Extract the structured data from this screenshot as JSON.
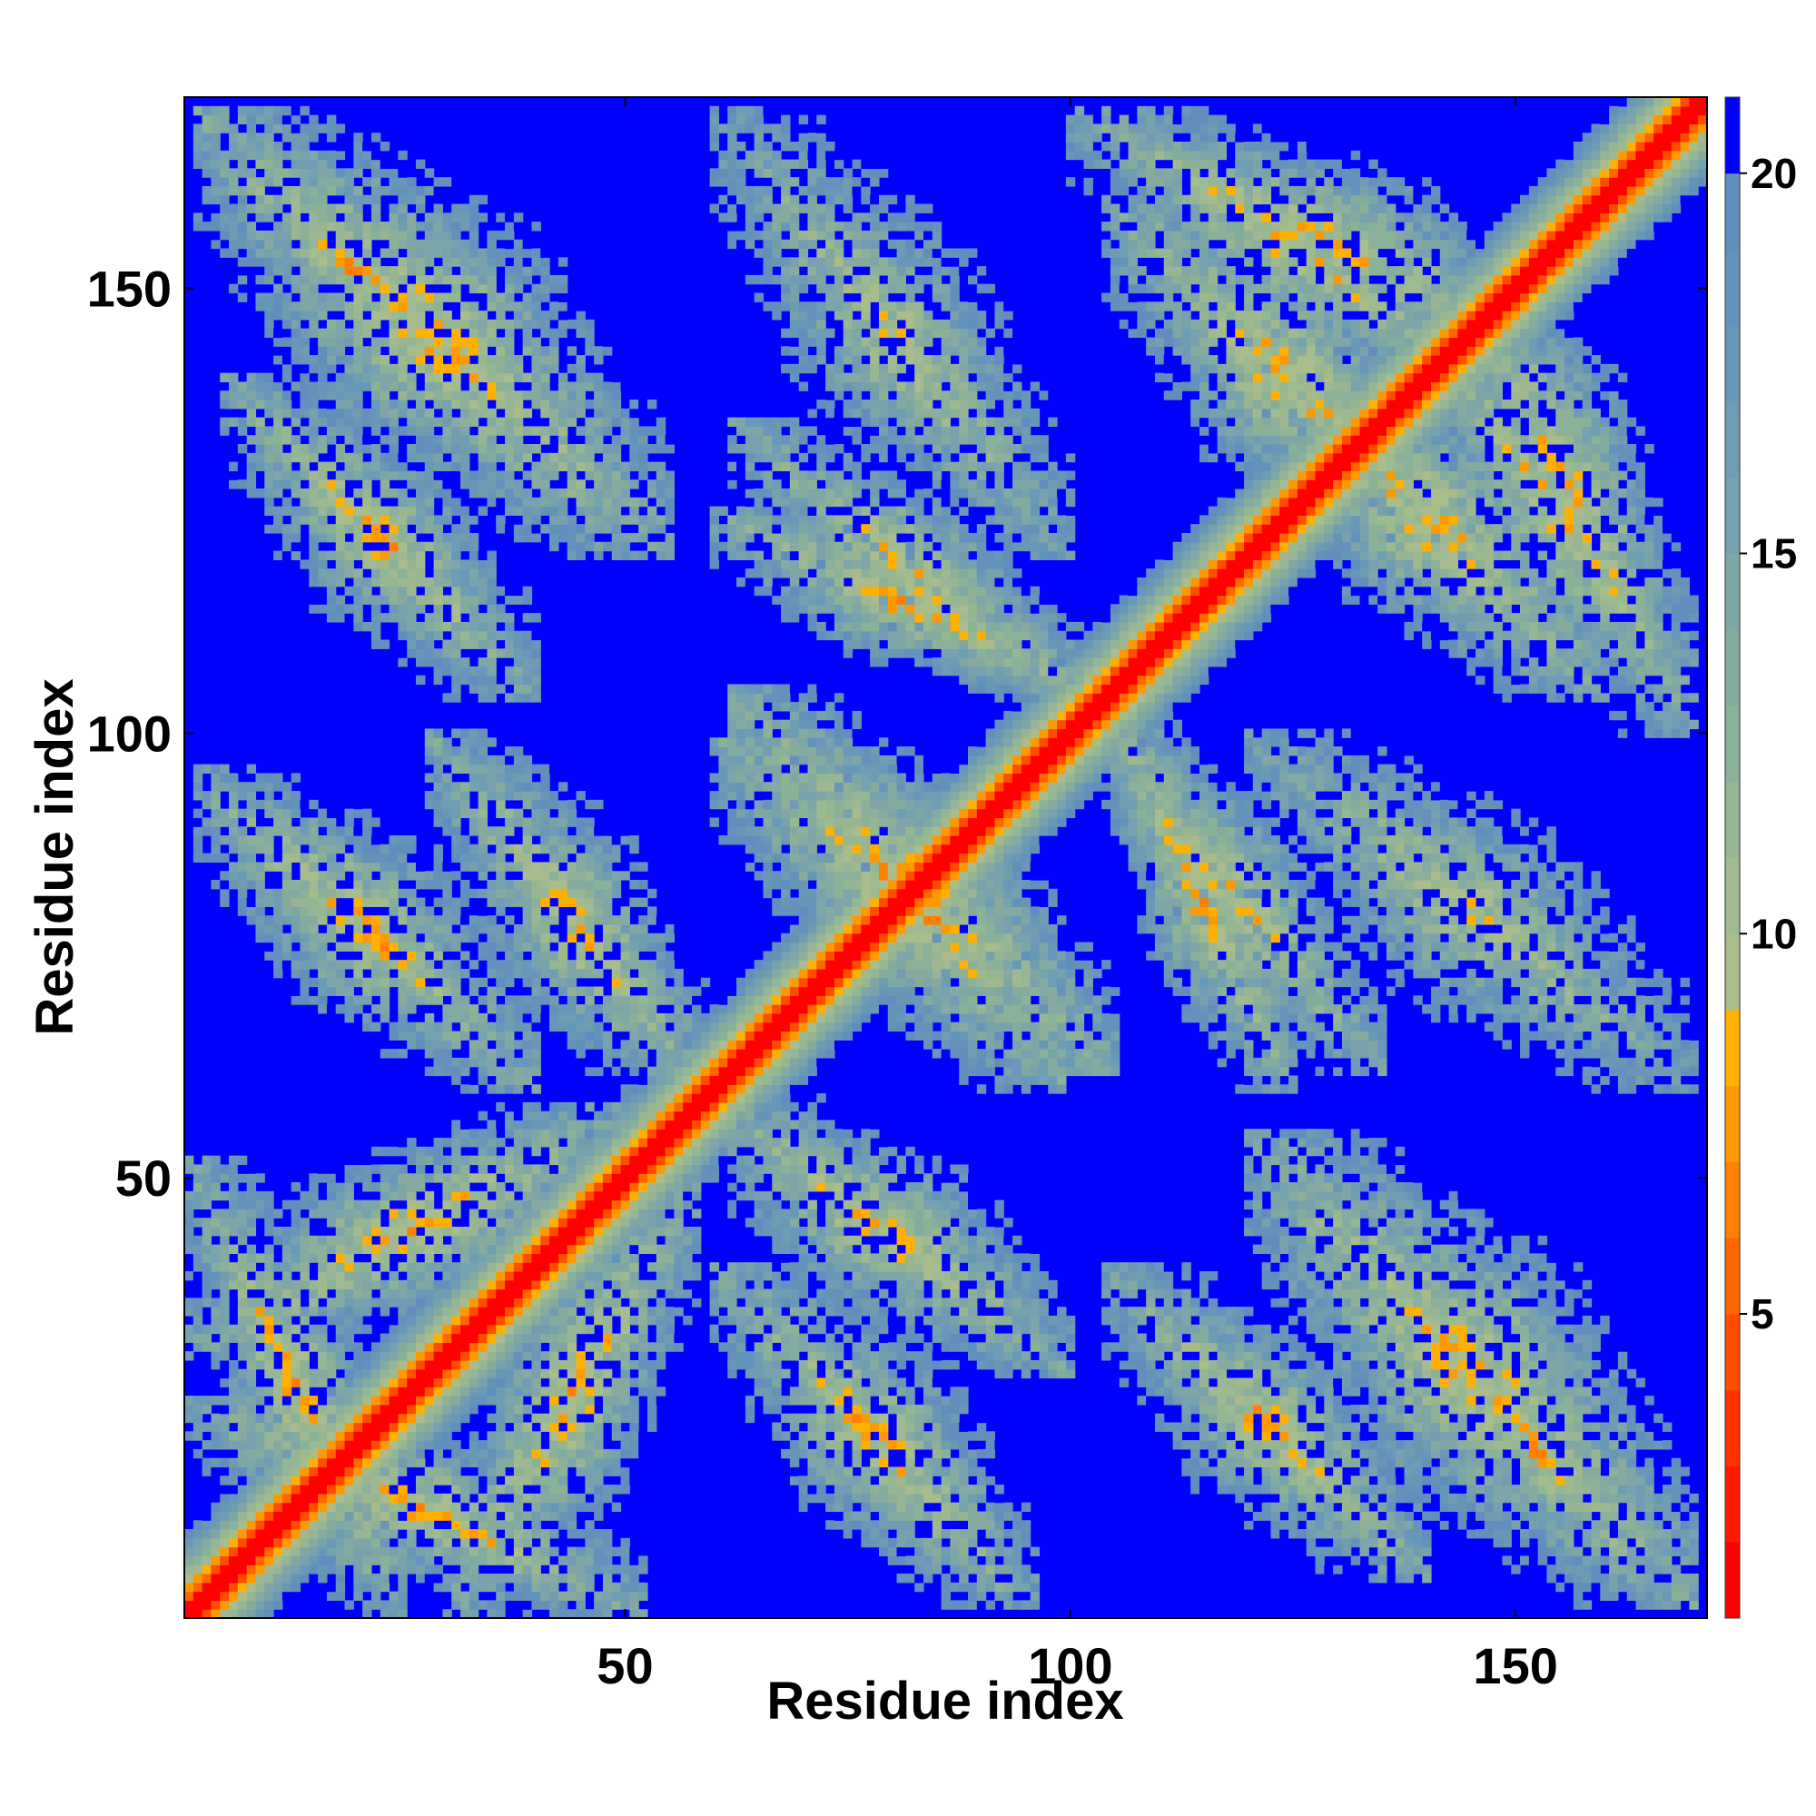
{
  "chart_data": {
    "type": "heatmap",
    "title": "",
    "xlabel": "Residue index",
    "ylabel": "Residue index",
    "xlim": [
      1,
      171
    ],
    "ylim": [
      1,
      171
    ],
    "x_ticks": [
      50,
      100,
      150
    ],
    "y_ticks": [
      50,
      100,
      150
    ],
    "colorbar": {
      "range": [
        1,
        21
      ],
      "ticks": [
        5,
        10,
        15,
        20
      ],
      "levels": [
        {
          "max": 2,
          "color": "#ff0000"
        },
        {
          "max": 3,
          "color": "#ff1a00"
        },
        {
          "max": 4,
          "color": "#ff3300"
        },
        {
          "max": 5,
          "color": "#ff4d00"
        },
        {
          "max": 6,
          "color": "#ff6600"
        },
        {
          "max": 7,
          "color": "#ff8000"
        },
        {
          "max": 8,
          "color": "#ff9900"
        },
        {
          "max": 9,
          "color": "#ffb000"
        },
        {
          "max": 10,
          "color": "#a8bc8c"
        },
        {
          "max": 11,
          "color": "#9fba90"
        },
        {
          "max": 12,
          "color": "#96b694"
        },
        {
          "max": 13,
          "color": "#8cb199"
        },
        {
          "max": 14,
          "color": "#85aba0"
        },
        {
          "max": 15,
          "color": "#7ea6a6"
        },
        {
          "max": 16,
          "color": "#77a1ac"
        },
        {
          "max": 17,
          "color": "#709cb2"
        },
        {
          "max": 18,
          "color": "#6997b7"
        },
        {
          "max": 19,
          "color": "#6592ba"
        },
        {
          "max": 20,
          "color": "#618ebc"
        },
        {
          "max": 21,
          "color": "#0000ff"
        }
      ]
    },
    "background_color": "#0000ff",
    "structure": {
      "diagonal_band_values": [
        1,
        1,
        4,
        7,
        9,
        11,
        13,
        15,
        17,
        19,
        21
      ],
      "contact_blocks": [
        {
          "i_range": [
            1,
            52
          ],
          "j_range": [
            1,
            25
          ],
          "min_value": 5.5,
          "orientation": "antiparallel"
        },
        {
          "i_range": [
            30,
            58
          ],
          "j_range": [
            1,
            50
          ],
          "min_value": 5.5,
          "orientation": "parallel"
        },
        {
          "i_range": [
            58,
            100
          ],
          "j_range": [
            28,
            60
          ],
          "min_value": 6,
          "orientation": "antiparallel"
        },
        {
          "i_range": [
            58,
            100
          ],
          "j_range": [
            30,
            58
          ],
          "min_value": 7,
          "orientation": "antiparallel"
        },
        {
          "i_range": [
            2,
            40
          ],
          "j_range": [
            60,
            95
          ],
          "min_value": 6,
          "orientation": "antiparallel"
        },
        {
          "i_range": [
            2,
            40
          ],
          "j_range": [
            62,
            96
          ],
          "min_value": 6.5,
          "orientation": "antiparallel"
        },
        {
          "i_range": [
            60,
            105
          ],
          "j_range": [
            62,
            100
          ],
          "min_value": 5.5,
          "orientation": "antiparallel"
        },
        {
          "i_range": [
            60,
            104
          ],
          "j_range": [
            104,
            125
          ],
          "min_value": 5.5,
          "orientation": "antiparallel"
        },
        {
          "i_range": [
            120,
            170
          ],
          "j_range": [
            2,
            55
          ],
          "min_value": 5.5,
          "orientation": "antiparallel"
        },
        {
          "i_range": [
            104,
            140
          ],
          "j_range": [
            5,
            40
          ],
          "min_value": 6,
          "orientation": "antiparallel"
        },
        {
          "i_range": [
            104,
            135
          ],
          "j_range": [
            62,
            100
          ],
          "min_value": 6.5,
          "orientation": "antiparallel"
        },
        {
          "i_range": [
            120,
            170
          ],
          "j_range": [
            60,
            100
          ],
          "min_value": 7,
          "orientation": "antiparallel"
        },
        {
          "i_range": [
            120,
            160
          ],
          "j_range": [
            104,
            145
          ],
          "min_value": 5.5,
          "orientation": "antiparallel"
        },
        {
          "i_range": [
            140,
            170
          ],
          "j_range": [
            104,
            145
          ],
          "min_value": 5.5,
          "orientation": "antiparallel"
        },
        {
          "i_range": [
            140,
            165
          ],
          "j_range": [
            4,
            35
          ],
          "min_value": 5.5,
          "orientation": "antiparallel"
        },
        {
          "i_range": [
            142,
            170
          ],
          "j_range": [
            100,
            155
          ],
          "min_value": 6,
          "orientation": "antiparallel"
        }
      ]
    }
  }
}
